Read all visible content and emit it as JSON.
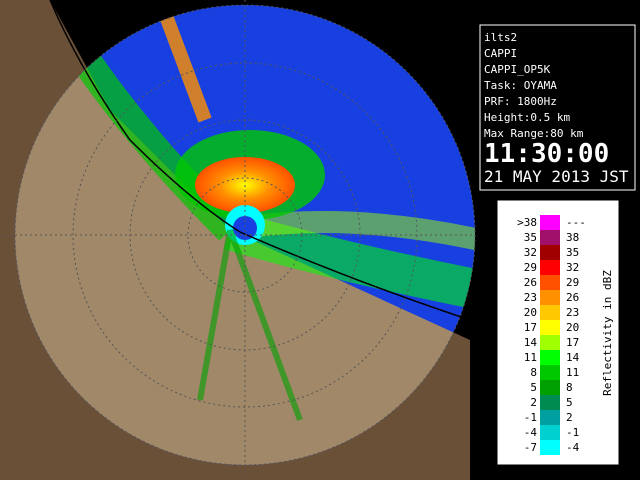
{
  "panel": {
    "lines": [
      "ilts2",
      "CAPPI",
      "CAPPI_OP5K",
      "Task: OYAMA",
      "PRF: 1800Hz",
      "Height:0.5 km",
      "Max Range:80 km"
    ],
    "time": "11:30:00",
    "date": "21 MAY 2013 JST"
  },
  "legend": {
    "title": "Reflectivity in dBZ",
    "rows": [
      {
        "low": ">38",
        "high": "---",
        "color": "#ff00ff"
      },
      {
        "low": "35",
        "high": "38",
        "color": "#a0106a"
      },
      {
        "low": "32",
        "high": "35",
        "color": "#a00000"
      },
      {
        "low": "29",
        "high": "32",
        "color": "#ff0000"
      },
      {
        "low": "26",
        "high": "29",
        "color": "#ff5000"
      },
      {
        "low": "23",
        "high": "26",
        "color": "#ff9000"
      },
      {
        "low": "20",
        "high": "23",
        "color": "#ffc800"
      },
      {
        "low": "17",
        "high": "20",
        "color": "#ffff00"
      },
      {
        "low": "14",
        "high": "17",
        "color": "#a0ff00"
      },
      {
        "low": "11",
        "high": "14",
        "color": "#00ff00"
      },
      {
        "low": "8",
        "high": "11",
        "color": "#00c800"
      },
      {
        "low": "5",
        "high": "8",
        "color": "#00a000"
      },
      {
        "low": "2",
        "high": "5",
        "color": "#008c50"
      },
      {
        "low": "-1",
        "high": "2",
        "color": "#00a0a0"
      },
      {
        "low": "-4",
        "high": "-1",
        "color": "#00d0d0"
      },
      {
        "low": "-7",
        "high": "-4",
        "color": "#00ffff"
      }
    ]
  }
}
